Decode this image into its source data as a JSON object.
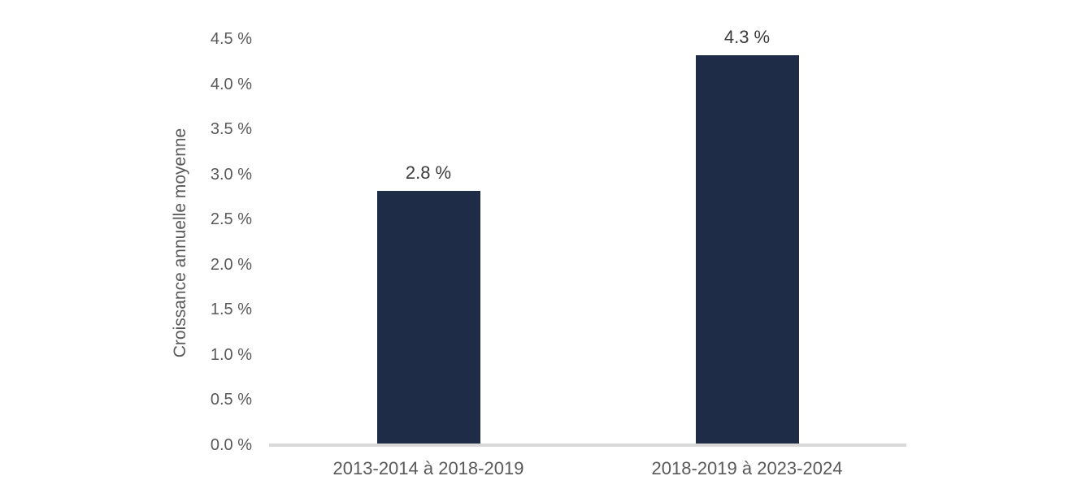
{
  "chart_data": {
    "type": "bar",
    "title": "",
    "xlabel": "",
    "ylabel": "Croissance annuelle moyenne",
    "categories": [
      "2013-2014 à 2018-2019",
      "2018-2019 à 2023-2024"
    ],
    "values": [
      2.8,
      4.3
    ],
    "value_labels": [
      "2.8 %",
      "4.3 %"
    ],
    "ylim": [
      0,
      4.5
    ],
    "ytick_step": 0.5,
    "ytick_labels": [
      "0.0 %",
      "0.5 %",
      "1.0 %",
      "1.5 %",
      "2.0 %",
      "2.5 %",
      "3.0 %",
      "3.5 %",
      "4.0 %",
      "4.5 %"
    ],
    "grid": false,
    "legend": null,
    "layout": {
      "legend_position": "none",
      "bars_vertical": true
    },
    "colors": {
      "bar": "#1E2C48",
      "axis_line": "#D9D9D9",
      "tick_text": "#595959",
      "axis_title_text": "#595959",
      "category_text": "#595959",
      "data_label_text": "#3B3B3B",
      "background": "#FFFFFF"
    }
  }
}
